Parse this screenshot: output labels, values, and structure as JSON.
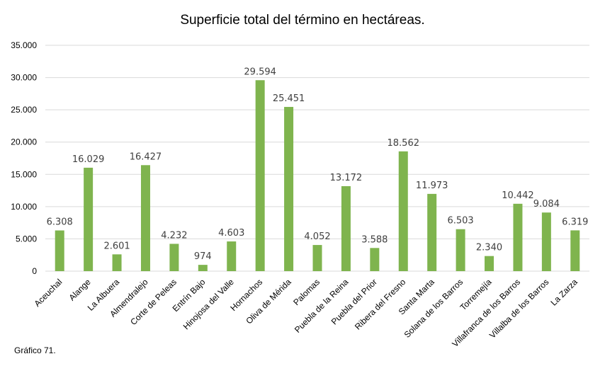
{
  "chart_data": {
    "type": "bar",
    "title": "Superficie total del término en hectáreas.",
    "xlabel": "",
    "ylabel": "",
    "ylim": [
      0,
      35000
    ],
    "yticks": [
      "0",
      "5.000",
      "10.000",
      "15.000",
      "20.000",
      "25.000",
      "30.000",
      "35.000"
    ],
    "grid": true,
    "color": "#7FB44E",
    "categories": [
      "Aceuchal",
      "Alange",
      "La Albuera",
      "Almendralejo",
      "Corte de Peleas",
      "Entrín Bajo",
      "Hinojosa del Valle",
      "Hornachos",
      "Oliva de Mérida",
      "Palomas",
      "Puebla de la Reina",
      "Puebla del Prior",
      "Ribera del Fresno",
      "Santa Marta",
      "Solana de los Barros",
      "Torremejía",
      "Villafranca de los Barros",
      "Villalba de los Barros",
      "La Zarza"
    ],
    "values": [
      6308,
      16029,
      2601,
      16427,
      4232,
      974,
      4603,
      29594,
      25451,
      4052,
      13172,
      3588,
      18562,
      11973,
      6503,
      2340,
      10442,
      9084,
      6319
    ],
    "data_labels": [
      "6.308",
      "16.029",
      "2.601",
      "16.427",
      "4.232",
      "974",
      "4.603",
      "29.594",
      "25.451",
      "4.052",
      "13.172",
      "3.588",
      "18.562",
      "11.973",
      "6.503",
      "2.340",
      "10.442",
      "9.084",
      "6.319"
    ]
  },
  "caption": "Gráfico 71."
}
